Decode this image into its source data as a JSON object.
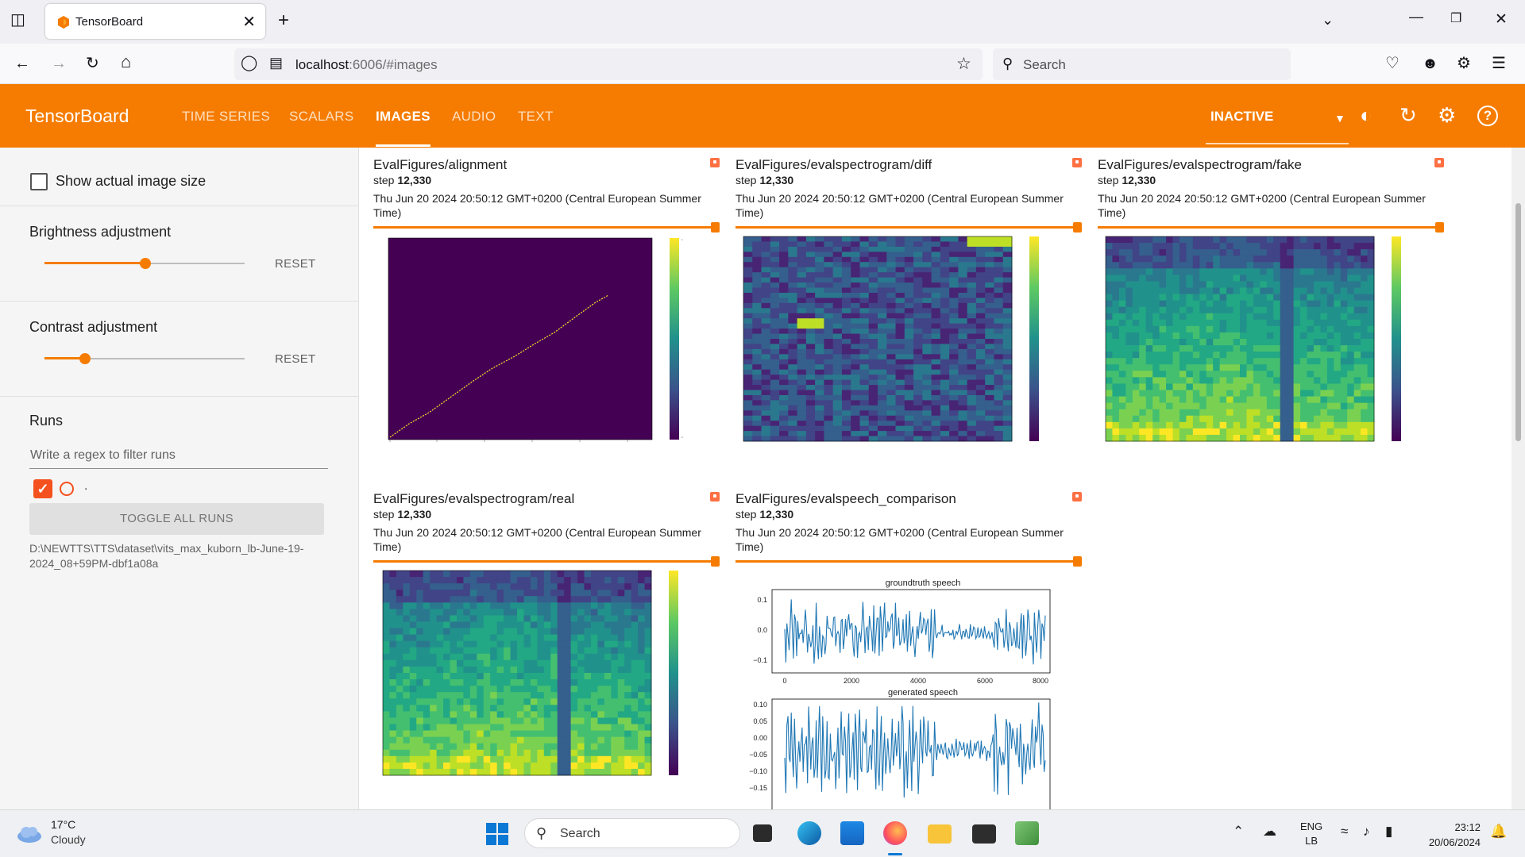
{
  "browser": {
    "tab_title": "TensorBoard",
    "url_host": "localhost",
    "url_rest": ":6006/#images",
    "search_placeholder": "Search"
  },
  "header": {
    "brand": "TensorBoard",
    "tabs": [
      "TIME SERIES",
      "SCALARS",
      "IMAGES",
      "AUDIO",
      "TEXT"
    ],
    "active_tab": "IMAGES",
    "status": "INACTIVE"
  },
  "sidebar": {
    "show_actual_size": "Show actual image size",
    "brightness_label": "Brightness adjustment",
    "contrast_label": "Contrast adjustment",
    "brightness_value": 0.5,
    "contrast_value": 0.2,
    "reset_label": "RESET",
    "runs_label": "Runs",
    "filter_placeholder": "Write a regex to filter runs",
    "run_name": ".",
    "toggle_all": "TOGGLE ALL RUNS",
    "run_path": "D:\\NEWTTS\\TTS\\dataset\\vits_max_kuborn_lb-June-19-2024_08+59PM-dbf1a08a"
  },
  "cards": [
    {
      "title": "EvalFigures/alignment",
      "step_label": "step",
      "step": "12,330",
      "date": "Thu Jun 20 2024 20:50:12 GMT+0200 (Central European Summer Time)"
    },
    {
      "title": "EvalFigures/evalspectrogram/diff",
      "step_label": "step",
      "step": "12,330",
      "date": "Thu Jun 20 2024 20:50:12 GMT+0200 (Central European Summer Time)"
    },
    {
      "title": "EvalFigures/evalspectrogram/fake",
      "step_label": "step",
      "step": "12,330",
      "date": "Thu Jun 20 2024 20:50:12 GMT+0200 (Central European Summer Time)"
    },
    {
      "title": "EvalFigures/evalspectrogram/real",
      "step_label": "step",
      "step": "12,330",
      "date": "Thu Jun 20 2024 20:50:12 GMT+0200 (Central European Summer Time)"
    },
    {
      "title": "EvalFigures/evalspeech_comparison",
      "step_label": "step",
      "step": "12,330",
      "date": "Thu Jun 20 2024 20:50:12 GMT+0200 (Central European Summer Time)"
    }
  ],
  "speech_plot": {
    "top_title": "groundtruth speech",
    "bottom_title": "generated speech",
    "top_yticks": [
      "0.1",
      "0.0",
      "−0.1"
    ],
    "top_xticks": [
      "0",
      "2000",
      "4000",
      "6000",
      "8000"
    ],
    "bottom_yticks": [
      "0.10",
      "0.05",
      "0.00",
      "−0.05",
      "−0.10",
      "−0.15"
    ]
  },
  "taskbar": {
    "temperature": "17°C",
    "weather": "Cloudy",
    "search": "Search",
    "lang1": "ENG",
    "lang2": "LB",
    "time": "23:12",
    "date": "20/06/2024"
  },
  "colors": {
    "accent": "#f57c00",
    "viridis_dark": "#440154",
    "viridis_yellow": "#fde725"
  }
}
